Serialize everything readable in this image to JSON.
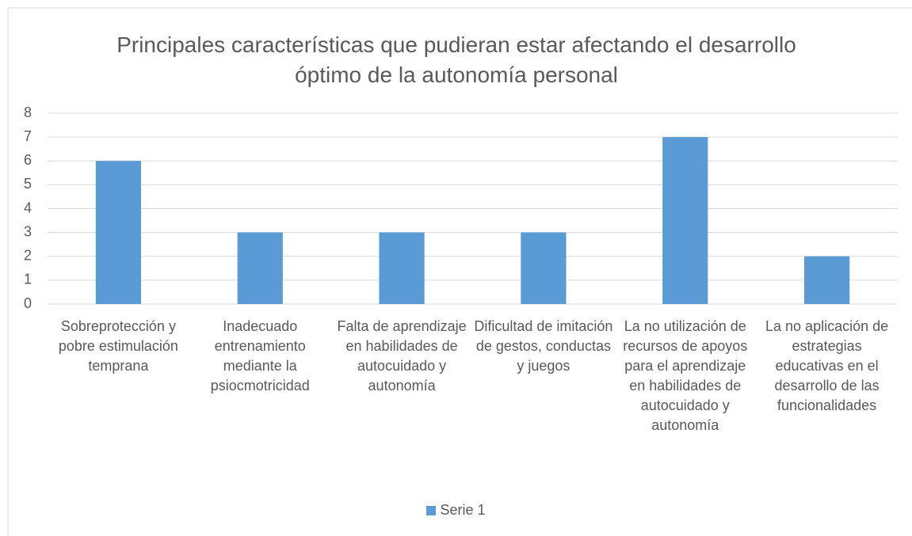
{
  "chart_data": {
    "type": "bar",
    "title": "Principales características que pudieran estar afectando el desarrollo óptimo de la autonomía personal",
    "categories": [
      "Sobreprotección y pobre estimulación temprana",
      "Inadecuado entrenamiento mediante la psiocmotricidad",
      "Falta de aprendizaje en habilidades de autocuidado y autonomía",
      "Dificultad de imitación de gestos, conductas y juegos",
      "La no utilización de recursos de apoyos para el aprendizaje en habilidades de autocuidado y autonomía",
      "La no aplicación de estrategias educativas en el desarrollo de las funcionalidades"
    ],
    "series": [
      {
        "name": "Serie 1",
        "color": "#5b9bd5",
        "values": [
          6,
          3,
          3,
          3,
          7,
          2
        ]
      }
    ],
    "ylim": [
      0,
      8
    ],
    "yticks": [
      0,
      1,
      2,
      3,
      4,
      5,
      6,
      7,
      8
    ],
    "grid": true,
    "legend": "bottom"
  }
}
